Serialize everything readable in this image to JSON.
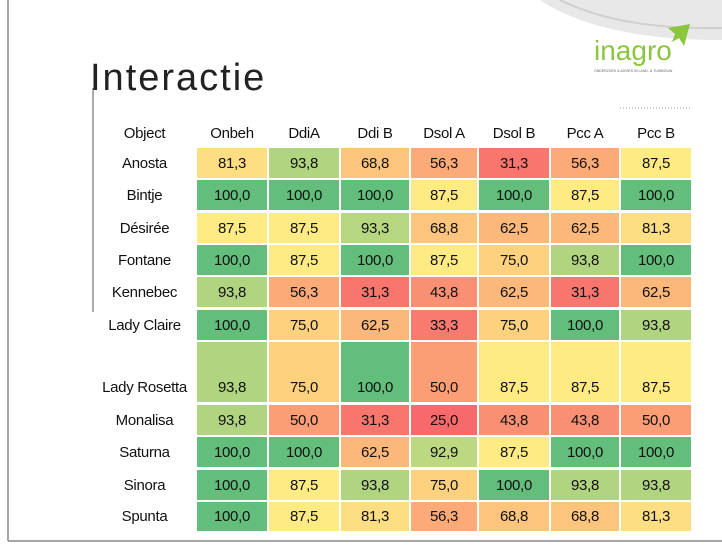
{
  "header": {
    "title": "Interactie",
    "logo": "inagro",
    "tagline": "ONDERZOEK & ADVIES IN LAND- & TUINBOUW"
  },
  "table": {
    "columns": [
      "Object",
      "Onbeh",
      "DdiA",
      "Ddi B",
      "Dsol A",
      "Dsol B",
      "Pcc A",
      "Pcc B"
    ],
    "rows": [
      [
        "Anosta",
        "81,3",
        "93,8",
        "68,8",
        "56,3",
        "31,3",
        "56,3",
        "87,5"
      ],
      [
        "Bintje",
        "100,0",
        "100,0",
        "100,0",
        "87,5",
        "100,0",
        "87,5",
        "100,0"
      ],
      [
        "Désirée",
        "87,5",
        "87,5",
        "93,3",
        "68,8",
        "62,5",
        "62,5",
        "81,3"
      ],
      [
        "Fontane",
        "100,0",
        "87,5",
        "100,0",
        "87,5",
        "75,0",
        "93,8",
        "100,0"
      ],
      [
        "Kennebec",
        "93,8",
        "56,3",
        "31,3",
        "43,8",
        "62,5",
        "31,3",
        "62,5"
      ],
      [
        "Lady Claire",
        "100,0",
        "75,0",
        "62,5",
        "33,3",
        "75,0",
        "100,0",
        "93,8"
      ],
      [
        "Lady Rosetta",
        "93,8",
        "75,0",
        "100,0",
        "50,0",
        "87,5",
        "87,5",
        "87,5"
      ],
      [
        "Monalisa",
        "93,8",
        "50,0",
        "31,3",
        "25,0",
        "43,8",
        "43,8",
        "50,0"
      ],
      [
        "Saturna",
        "100,0",
        "100,0",
        "62,5",
        "92,9",
        "87,5",
        "100,0",
        "100,0"
      ],
      [
        "Sinora",
        "100,0",
        "87,5",
        "93,8",
        "75,0",
        "100,0",
        "93,8",
        "93,8"
      ],
      [
        "Spunta",
        "100,0",
        "87,5",
        "81,3",
        "56,3",
        "68,8",
        "68,8",
        "81,3"
      ]
    ]
  }
}
